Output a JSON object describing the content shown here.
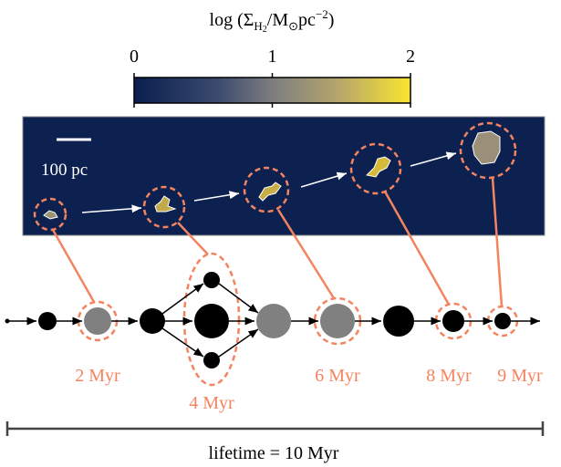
{
  "colorbar": {
    "label": [
      "log (Σ",
      "H",
      "2",
      "/M",
      "⊙",
      "pc",
      "−2",
      ")"
    ],
    "lim": [
      0,
      2
    ],
    "ticks": [
      0,
      1,
      2
    ]
  },
  "panel": {
    "scale_label": "100 pc"
  },
  "stages": [
    "2 Myr",
    "4 Myr",
    "6 Myr",
    "8 Myr",
    "9 Myr"
  ],
  "lifetime": "lifetime = 10 Myr"
}
